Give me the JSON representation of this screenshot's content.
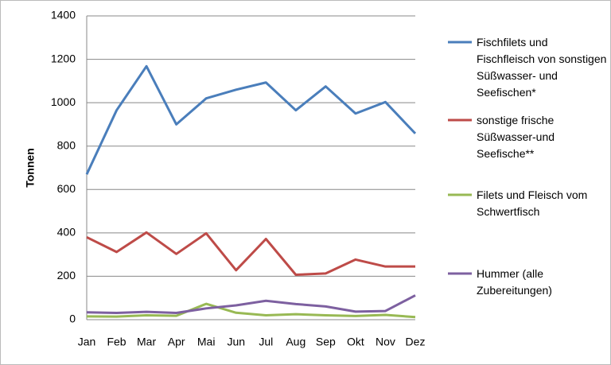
{
  "chart_data": {
    "type": "line",
    "y_label": "Tonnen",
    "categories": [
      "Jan",
      "Feb",
      "Mar",
      "Apr",
      "Mai",
      "Jun",
      "Jul",
      "Aug",
      "Sep",
      "Okt",
      "Nov",
      "Dez"
    ],
    "ylim": [
      0,
      1400
    ],
    "yticks": [
      0,
      200,
      400,
      600,
      800,
      1000,
      1200,
      1400
    ],
    "grid": true,
    "series": [
      {
        "name": "Fischfilets und Fischfleisch von sonstigen Süßwasser- und Seefischen*",
        "color": "#4a7ebb",
        "values": [
          670,
          965,
          1168,
          900,
          1020,
          1060,
          1093,
          965,
          1075,
          950,
          1003,
          858
        ]
      },
      {
        "name": "sonstige frische Süßwasser-und Seefische**",
        "color": "#be4b48",
        "values": [
          380,
          312,
          402,
          303,
          398,
          228,
          372,
          207,
          213,
          277,
          245,
          245
        ]
      },
      {
        "name": "Filets und Fleisch vom Schwertfisch",
        "color": "#98b954",
        "values": [
          15,
          14,
          20,
          18,
          73,
          32,
          20,
          25,
          20,
          17,
          22,
          12
        ]
      },
      {
        "name": "Hummer (alle Zubereitungen)",
        "color": "#7d60a0",
        "values": [
          34,
          31,
          36,
          31,
          52,
          66,
          87,
          72,
          61,
          37,
          40,
          112
        ]
      }
    ]
  }
}
